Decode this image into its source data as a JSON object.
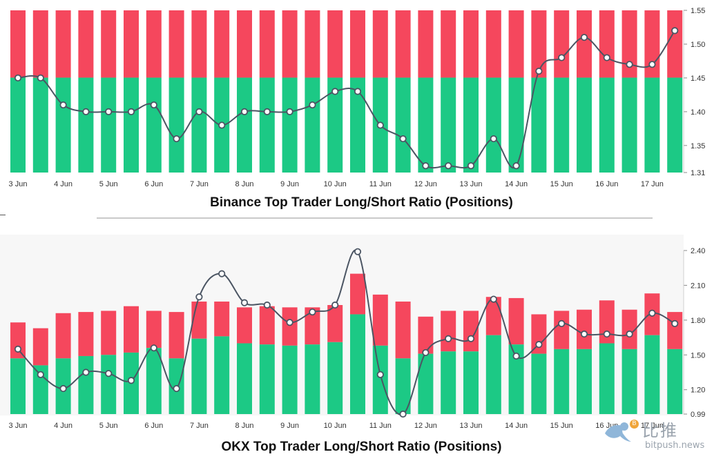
{
  "chart_data": [
    {
      "type": "bar",
      "title": "Binance Top Trader Long/Short Ratio (Positions)",
      "x_tick_labels": [
        "3 Jun",
        "4 Jun",
        "5 Jun",
        "6 Jun",
        "7 Jun",
        "8 Jun",
        "9 Jun",
        "10 Jun",
        "11 Jun",
        "12 Jun",
        "13 Jun",
        "14 Jun",
        "15 Jun",
        "16 Jun",
        "17 Jun"
      ],
      "y_ticks": [
        "1.55",
        "1.50",
        "1.45",
        "1.40",
        "1.35",
        "1.31"
      ],
      "ylim": [
        1.31,
        1.55
      ],
      "bar_scale": "stacked to 100%",
      "grid": false,
      "colors": {
        "long": "#1cc985",
        "short": "#f5475d",
        "line": "#4b5563"
      },
      "series": [
        {
          "values_long_share": [
            0.585,
            0.585,
            0.585,
            0.585,
            0.585,
            0.585,
            0.585,
            0.585,
            0.585,
            0.585,
            0.585,
            0.585,
            0.585,
            0.585,
            0.585,
            0.585,
            0.585,
            0.585,
            0.585,
            0.585,
            0.585,
            0.585,
            0.585,
            0.585,
            0.585,
            0.585,
            0.585,
            0.585,
            0.585,
            0.585
          ]
        },
        {
          "values_ratio": [
            1.45,
            1.45,
            1.41,
            1.4,
            1.4,
            1.4,
            1.41,
            1.36,
            1.4,
            1.38,
            1.4,
            1.4,
            1.4,
            1.41,
            1.43,
            1.43,
            1.38,
            1.36,
            1.32,
            1.32,
            1.32,
            1.36,
            1.32,
            1.46,
            1.48,
            1.51,
            1.48,
            1.47,
            1.47,
            1.52
          ]
        }
      ]
    },
    {
      "type": "bar",
      "title": "OKX Top Trader Long/Short Ratio (Positions)",
      "x_tick_labels": [
        "3 Jun",
        "4 Jun",
        "5 Jun",
        "6 Jun",
        "7 Jun",
        "8 Jun",
        "9 Jun",
        "10 Jun",
        "11 Jun",
        "12 Jun",
        "13 Jun",
        "14 Jun",
        "15 Jun",
        "16 Jun",
        "17 Jun"
      ],
      "y_ticks": [
        "2.40",
        "2.10",
        "1.80",
        "1.50",
        "1.20",
        "0.99"
      ],
      "ylim": [
        0.99,
        2.4
      ],
      "grid": false,
      "colors": {
        "long": "#1cc985",
        "short": "#f5475d",
        "line": "#4b5563"
      },
      "series": [
        {
          "values_long": [
            1.47,
            1.41,
            1.47,
            1.49,
            1.5,
            1.52,
            1.56,
            1.47,
            1.64,
            1.66,
            1.6,
            1.59,
            1.58,
            1.59,
            1.61,
            1.85,
            1.58,
            1.47,
            1.51,
            1.53,
            1.53,
            1.67,
            1.59,
            1.51,
            1.55,
            1.55,
            1.6,
            1.55,
            1.67,
            1.55
          ]
        },
        {
          "values_total": [
            1.78,
            1.73,
            1.86,
            1.87,
            1.88,
            1.92,
            1.88,
            1.87,
            1.96,
            1.96,
            1.91,
            1.92,
            1.91,
            1.91,
            1.93,
            2.2,
            2.02,
            1.96,
            1.83,
            1.88,
            1.88,
            2.0,
            1.99,
            1.85,
            1.88,
            1.89,
            1.97,
            1.89,
            2.03,
            1.87
          ]
        },
        {
          "values_ratio": [
            1.55,
            1.33,
            1.21,
            1.35,
            1.34,
            1.28,
            1.56,
            1.21,
            2.0,
            2.2,
            1.95,
            1.93,
            1.78,
            1.87,
            1.93,
            2.39,
            1.33,
            0.99,
            1.52,
            1.64,
            1.64,
            1.98,
            1.49,
            1.59,
            1.77,
            1.68,
            1.68,
            1.68,
            1.86,
            1.77
          ]
        }
      ]
    }
  ],
  "watermark": {
    "chinese": "比推",
    "url": "bitpush.news",
    "coin_glyph": "B"
  }
}
